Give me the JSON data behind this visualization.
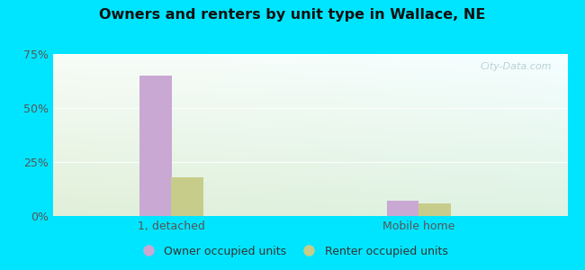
{
  "title": "Owners and renters by unit type in Wallace, NE",
  "categories": [
    "1, detached",
    "Mobile home"
  ],
  "owner_values": [
    65.0,
    7.0
  ],
  "renter_values": [
    18.0,
    6.0
  ],
  "owner_color": "#c9a8d4",
  "renter_color": "#c8cc8a",
  "ylim": [
    0,
    75
  ],
  "yticks": [
    0,
    25,
    50,
    75
  ],
  "ytick_labels": [
    "0%",
    "25%",
    "50%",
    "75%"
  ],
  "legend_owner": "Owner occupied units",
  "legend_renter": "Renter occupied units",
  "bar_width": 0.32,
  "group_positions": [
    1.5,
    4.0
  ],
  "xlim": [
    0.3,
    5.5
  ],
  "bg_outer_color": "#00e5ff",
  "watermark": "City-Data.com"
}
